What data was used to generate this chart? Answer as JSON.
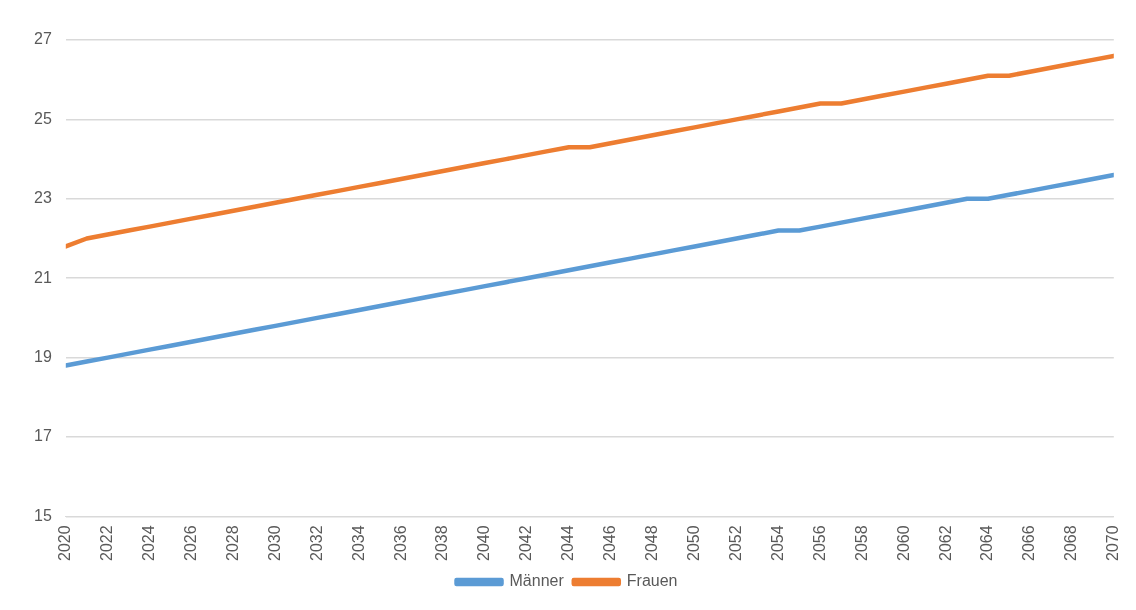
{
  "chart_data": {
    "type": "line",
    "x": [
      2020,
      2021,
      2022,
      2023,
      2024,
      2025,
      2026,
      2027,
      2028,
      2029,
      2030,
      2031,
      2032,
      2033,
      2034,
      2035,
      2036,
      2037,
      2038,
      2039,
      2040,
      2041,
      2042,
      2043,
      2044,
      2045,
      2046,
      2047,
      2048,
      2049,
      2050,
      2051,
      2052,
      2053,
      2054,
      2055,
      2056,
      2057,
      2058,
      2059,
      2060,
      2061,
      2062,
      2063,
      2064,
      2065,
      2066,
      2067,
      2068,
      2069,
      2070
    ],
    "series": [
      {
        "name": "Männer",
        "color": "#5b9bd5",
        "values": [
          18.8,
          18.9,
          19.0,
          19.1,
          19.2,
          19.3,
          19.4,
          19.5,
          19.6,
          19.7,
          19.8,
          19.9,
          20.0,
          20.1,
          20.2,
          20.3,
          20.4,
          20.5,
          20.6,
          20.7,
          20.8,
          20.9,
          21.0,
          21.1,
          21.2,
          21.3,
          21.4,
          21.5,
          21.6,
          21.7,
          21.8,
          21.9,
          22.0,
          22.1,
          22.2,
          22.2,
          22.3,
          22.4,
          22.5,
          22.6,
          22.7,
          22.8,
          22.9,
          23.0,
          23.0,
          23.1,
          23.2,
          23.3,
          23.4,
          23.5,
          23.6
        ]
      },
      {
        "name": "Frauen",
        "color": "#ed7d31",
        "values": [
          21.8,
          22.0,
          22.1,
          22.2,
          22.3,
          22.4,
          22.5,
          22.6,
          22.7,
          22.8,
          22.9,
          23.0,
          23.1,
          23.2,
          23.3,
          23.4,
          23.5,
          23.6,
          23.7,
          23.8,
          23.9,
          24.0,
          24.1,
          24.2,
          24.3,
          24.3,
          24.4,
          24.5,
          24.6,
          24.7,
          24.8,
          24.9,
          25.0,
          25.1,
          25.2,
          25.3,
          25.4,
          25.4,
          25.5,
          25.6,
          25.7,
          25.8,
          25.9,
          26.0,
          26.1,
          26.1,
          26.2,
          26.3,
          26.4,
          26.5,
          26.6
        ]
      }
    ],
    "xlim": [
      2020,
      2070
    ],
    "xticks": [
      2020,
      2022,
      2024,
      2026,
      2028,
      2030,
      2032,
      2034,
      2036,
      2038,
      2040,
      2042,
      2044,
      2046,
      2048,
      2050,
      2052,
      2054,
      2056,
      2058,
      2060,
      2062,
      2064,
      2066,
      2068,
      2070
    ],
    "ylim": [
      15,
      27
    ],
    "yticks": [
      15,
      17,
      19,
      21,
      23,
      25,
      27
    ],
    "grid": "y",
    "legend": "bottom",
    "marker": "none",
    "line_style": "solid"
  }
}
